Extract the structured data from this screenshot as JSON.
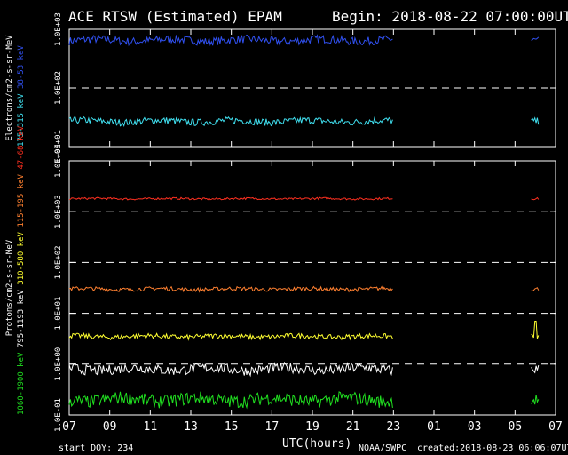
{
  "header": {
    "title": "ACE RTSW (Estimated) EPAM",
    "begin": "Begin: 2018-08-22 07:00:00UTC"
  },
  "footer": {
    "start_doy": "start DOY: 234",
    "xlabel": "UTC(hours)",
    "credit": "NOAA/SWPC",
    "created": "created:2018-08-23 06:06:07UTC"
  },
  "colors": {
    "background": "#000000",
    "axes": "#ffffff",
    "electrons_38_53": "#3050f0",
    "electrons_175_315": "#40e0f0",
    "protons_47_68": "#ff3020",
    "protons_115_195": "#ff8030",
    "protons_310_580": "#ffff30",
    "protons_795_1193": "#ffffff",
    "protons_1060_1900": "#20e020"
  },
  "chart_data": [
    {
      "type": "line",
      "panel": "electrons",
      "ylabel": "Electrons/cm2-s-sr-MeV",
      "yscale": "log",
      "ylim": [
        10,
        1000
      ],
      "yticks": [
        "1.0E+01",
        "1.0E+02",
        "1.0E+03"
      ],
      "xlim": [
        7,
        31
      ],
      "xticks": [
        "07",
        "09",
        "11",
        "13",
        "15",
        "17",
        "19",
        "21",
        "23",
        "01",
        "03",
        "05",
        "07"
      ],
      "gridlines": [
        100
      ],
      "gap": [
        23,
        29.8
      ],
      "series": [
        {
          "name": "38-53 keV",
          "color": "#3050f0",
          "level": 650,
          "spread": 0.07
        },
        {
          "name": "175-315 keV",
          "color": "#40e0f0",
          "level": 27,
          "spread": 0.06
        }
      ]
    },
    {
      "type": "line",
      "panel": "protons",
      "ylabel": "Protons/cm2-s-sr-MeV",
      "yscale": "log",
      "ylim": [
        0.1,
        10000
      ],
      "yticks": [
        "1.0E-01",
        "1.0E+00",
        "1.0E+01",
        "1.0E+02",
        "1.0E+03",
        "1.0E+04"
      ],
      "xlim": [
        7,
        31
      ],
      "xticks": [
        "07",
        "09",
        "11",
        "13",
        "15",
        "17",
        "19",
        "21",
        "23",
        "01",
        "03",
        "05",
        "07"
      ],
      "gridlines": [
        1,
        10,
        100,
        1000
      ],
      "gap": [
        23,
        29.8
      ],
      "series": [
        {
          "name": "47-68 keV",
          "color": "#ff3020",
          "level": 1800,
          "spread": 0.02
        },
        {
          "name": "115-195 keV",
          "color": "#ff8030",
          "level": 30,
          "spread": 0.04
        },
        {
          "name": "310-580 keV",
          "color": "#ffff30",
          "level": 3.5,
          "spread": 0.05
        },
        {
          "name": "795-1193 keV",
          "color": "#ffffff",
          "level": 0.8,
          "spread": 0.1
        },
        {
          "name": "1060-1900 keV",
          "color": "#20e020",
          "level": 0.2,
          "spread": 0.13
        }
      ]
    }
  ]
}
